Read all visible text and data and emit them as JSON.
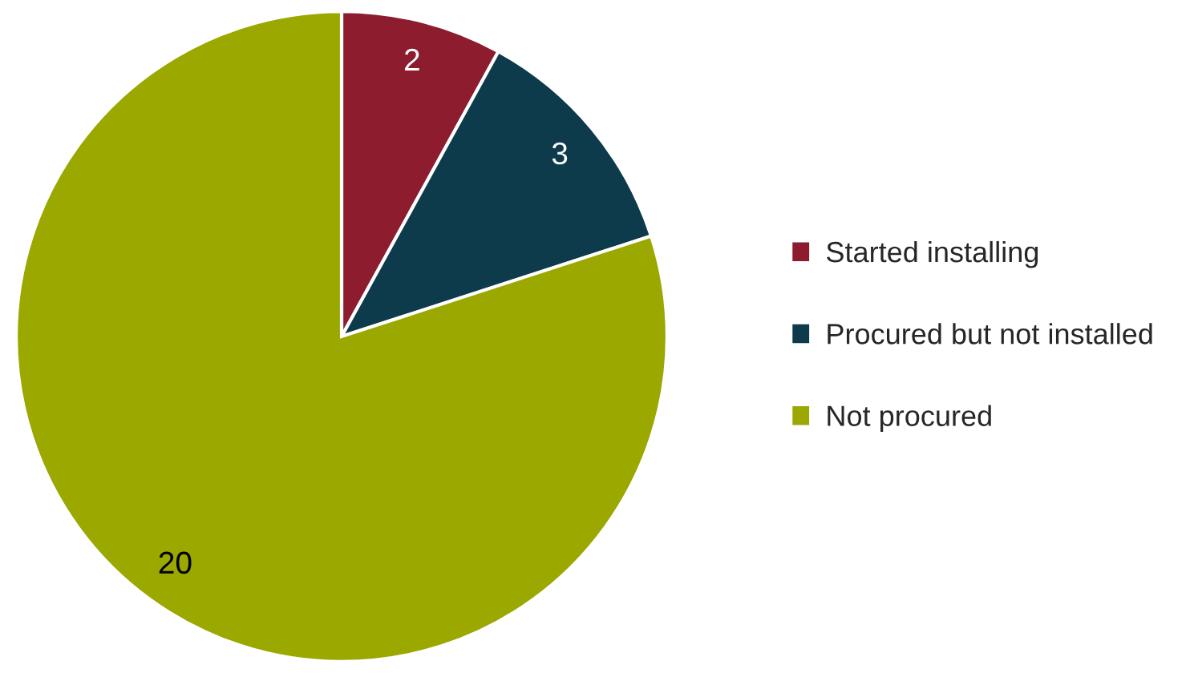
{
  "chart_data": {
    "type": "pie",
    "categories": [
      "Started installing",
      "Procured but not installed",
      "Not procured"
    ],
    "values": [
      2,
      3,
      20
    ],
    "colors": [
      "#8c1c2e",
      "#0e3b4c",
      "#9aa800"
    ],
    "data_labels": true,
    "legend": "right"
  }
}
